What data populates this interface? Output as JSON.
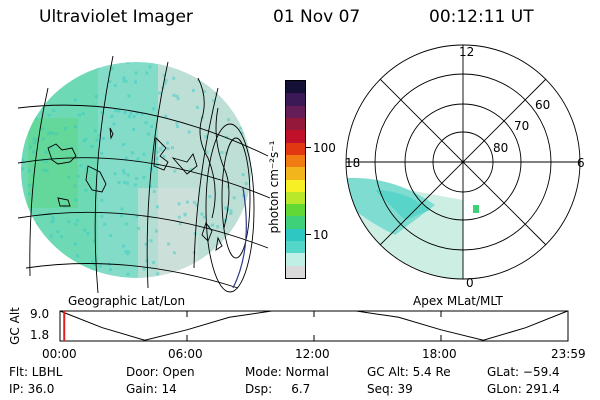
{
  "header": {
    "instrument": "Ultraviolet Imager",
    "date": "01 Nov 07",
    "time": "00:12:11 UT"
  },
  "left_panel": {
    "caption": "Geographic Lat/Lon"
  },
  "right_panel": {
    "caption": "Apex MLat/MLT",
    "mlt_labels": {
      "top": "12",
      "left": "18",
      "right": "6",
      "bottom": "0"
    },
    "lat_labels": [
      "60",
      "70",
      "80"
    ]
  },
  "colorbar": {
    "unit_label": "photon cm⁻²s⁻¹",
    "ticks": [
      "100",
      "10"
    ],
    "colors": [
      "#d9d9d9",
      "#c0efe6",
      "#54d6c9",
      "#2ec7c1",
      "#3fd17a",
      "#62d836",
      "#b9e82a",
      "#f6f024",
      "#f3b51c",
      "#ef7b12",
      "#e23812",
      "#c1112a",
      "#931839",
      "#641d56",
      "#3a1956",
      "#151035"
    ]
  },
  "orbit_plot": {
    "ylabel": "GC Alt",
    "y_ticks": [
      "9.0",
      "1.8"
    ],
    "x_ticks": [
      "00:00",
      "06:00",
      "12:00",
      "18:00",
      "23:59"
    ],
    "marker_color": "#e02020",
    "curve_x_hours": [
      0,
      2,
      4,
      6,
      8,
      10,
      12,
      14,
      16,
      18,
      20,
      22,
      23.98
    ],
    "curve_y": [
      9.0,
      5.0,
      2.0,
      4.5,
      7.5,
      9.0,
      9.0,
      9.0,
      7.5,
      4.5,
      2.0,
      5.0,
      9.0
    ],
    "marker_hour": 0.2
  },
  "status": {
    "flt": "Flt: LBHL",
    "ip": "IP: 36.0",
    "door": "Door: Open",
    "gain": "Gain: 14",
    "mode": "Mode: Normal",
    "dsp": "Dsp:     6.7",
    "gc_alt": "GC Alt: 5.4 Re",
    "seq": "Seq: 39",
    "glat": "GLat: −59.4",
    "glon": "GLon: 291.4"
  }
}
